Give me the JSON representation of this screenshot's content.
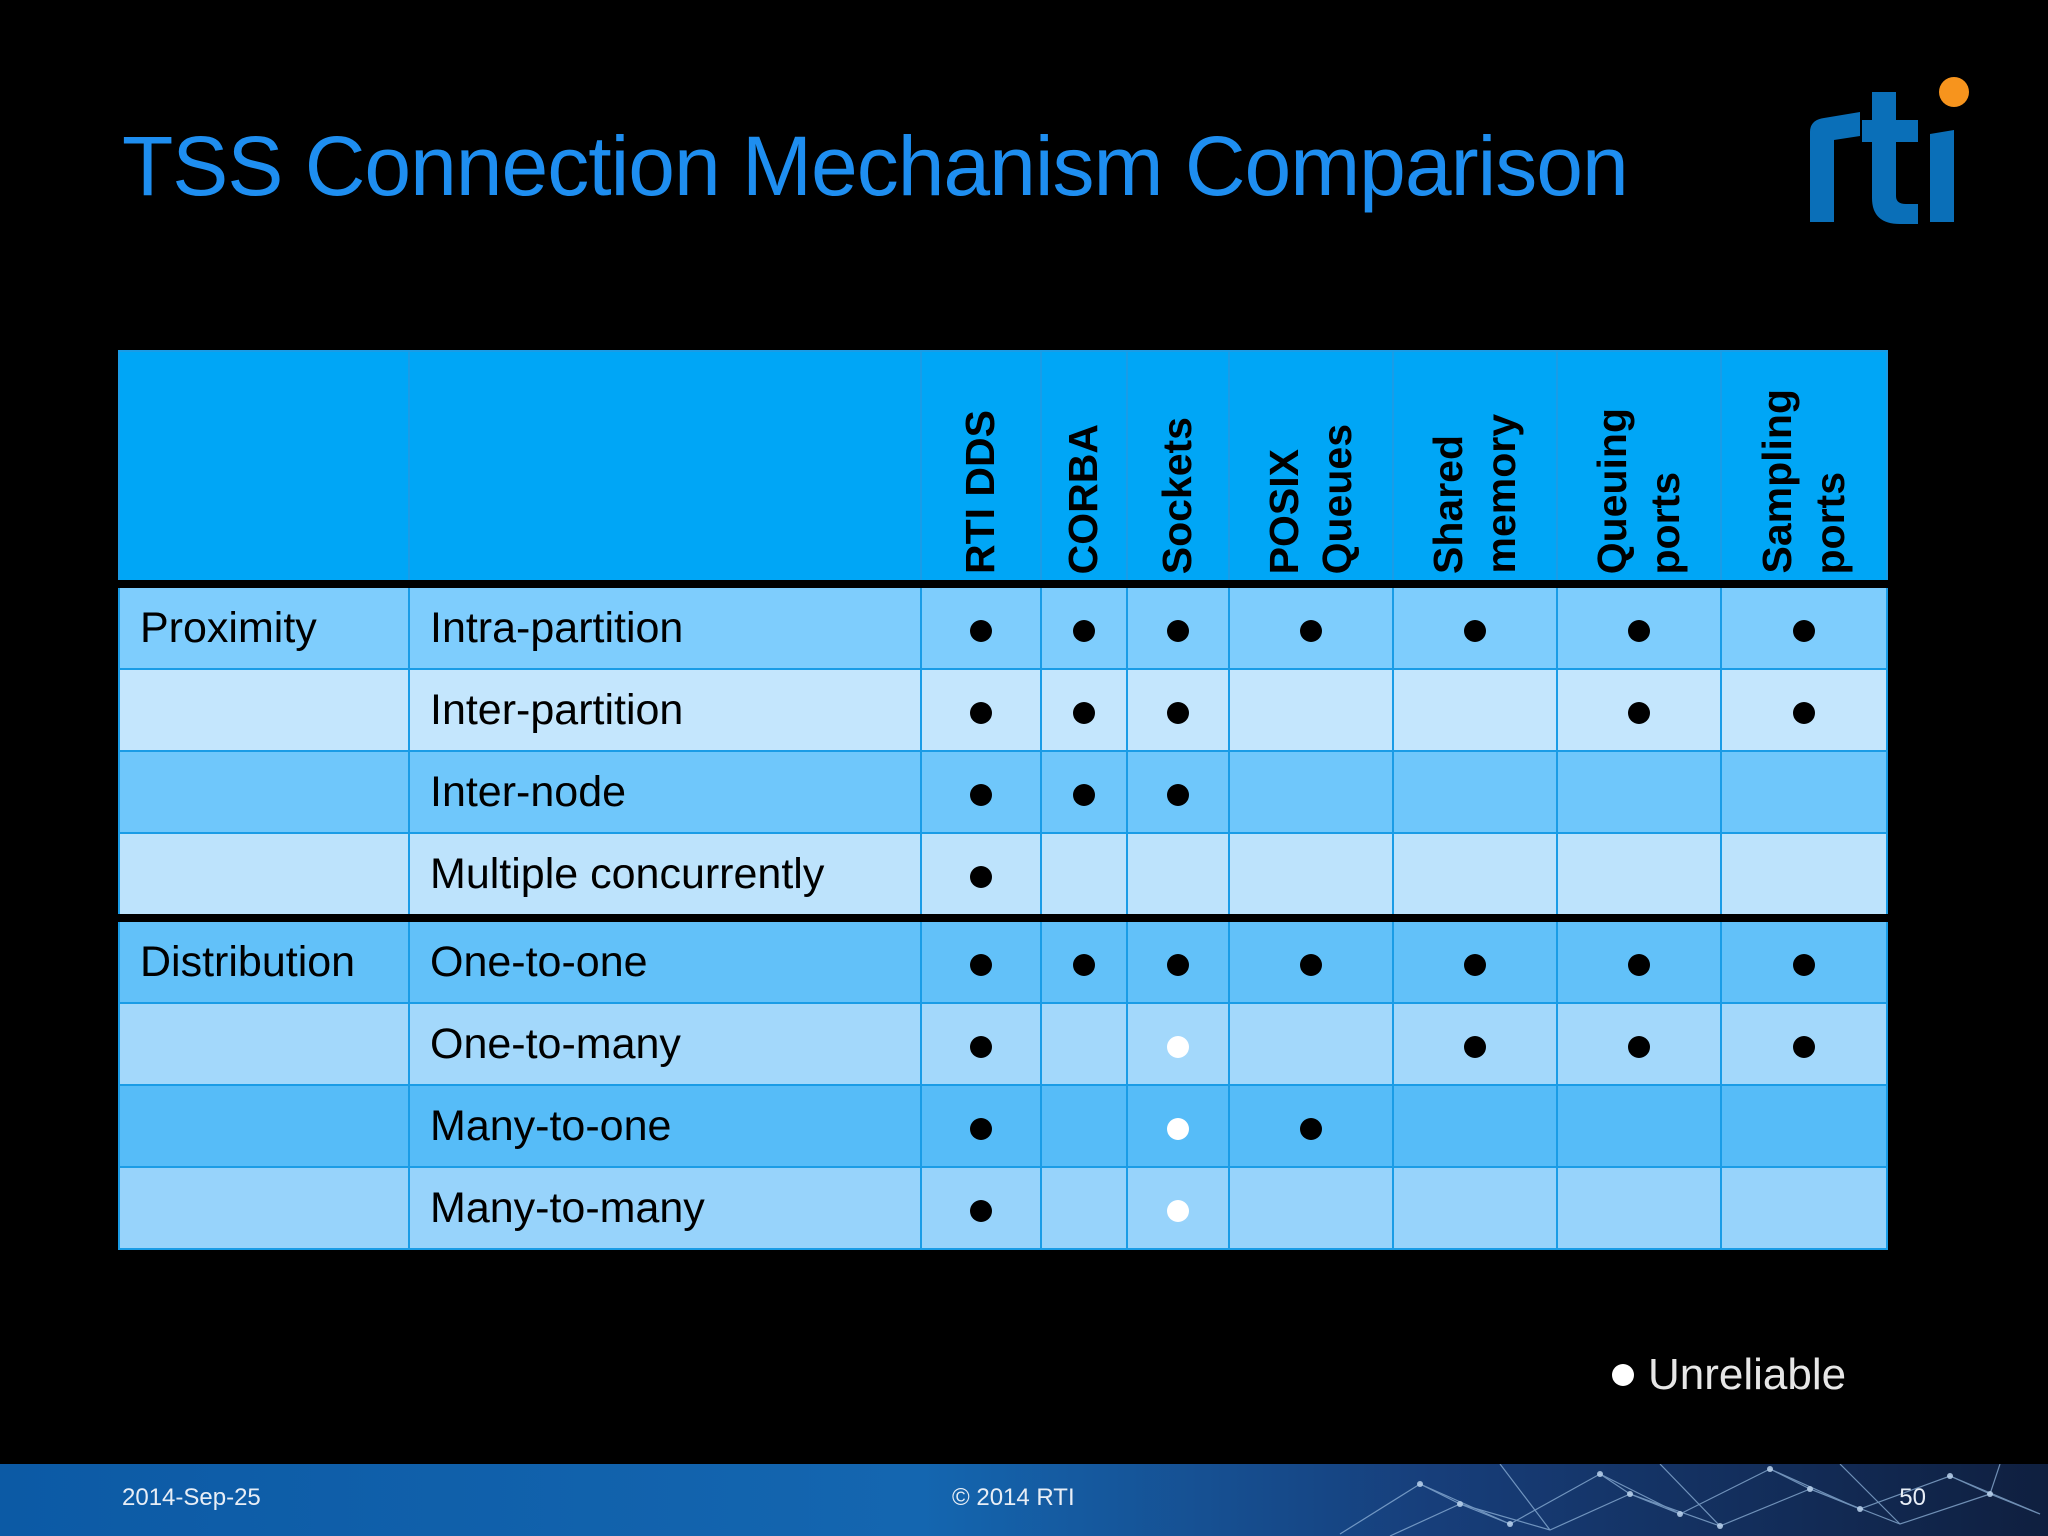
{
  "slide": {
    "title": "TSS Connection Mechanism Comparison",
    "logo_text": "rti"
  },
  "table": {
    "columns": [
      {
        "lines": [
          "RTI DDS"
        ]
      },
      {
        "lines": [
          "CORBA"
        ]
      },
      {
        "lines": [
          "Sockets"
        ]
      },
      {
        "lines": [
          "POSIX",
          "Queues"
        ]
      },
      {
        "lines": [
          "Shared",
          "memory"
        ]
      },
      {
        "lines": [
          "Queuing",
          "ports"
        ]
      },
      {
        "lines": [
          "Sampling",
          "ports"
        ]
      }
    ],
    "rows": [
      {
        "group": "Proximity",
        "label": "Intra-partition",
        "marks": [
          "black",
          "black",
          "black",
          "black",
          "black",
          "black",
          "black"
        ]
      },
      {
        "group": "",
        "label": "Inter-partition",
        "marks": [
          "black",
          "black",
          "black",
          "",
          "",
          "black",
          "black"
        ]
      },
      {
        "group": "",
        "label": "Inter-node",
        "marks": [
          "black",
          "black",
          "black",
          "",
          "",
          "",
          ""
        ]
      },
      {
        "group": "",
        "label": "Multiple concurrently",
        "marks": [
          "black",
          "",
          "",
          "",
          "",
          "",
          ""
        ]
      },
      {
        "group": "Distribution",
        "label": "One-to-one",
        "marks": [
          "black",
          "black",
          "black",
          "black",
          "black",
          "black",
          "black"
        ]
      },
      {
        "group": "",
        "label": "One-to-many",
        "marks": [
          "black",
          "",
          "white",
          "",
          "black",
          "black",
          "black"
        ]
      },
      {
        "group": "",
        "label": "Many-to-one",
        "marks": [
          "black",
          "",
          "white",
          "black",
          "",
          "",
          ""
        ]
      },
      {
        "group": "",
        "label": "Many-to-many",
        "marks": [
          "black",
          "",
          "white",
          "",
          "",
          "",
          ""
        ]
      }
    ]
  },
  "legend": {
    "label": "Unreliable",
    "dot_color": "#ffffff"
  },
  "footer": {
    "date": "2014-Sep-25",
    "copyright": "© 2014 RTI",
    "page": "50"
  },
  "colors": {
    "title": "#1e8ef0",
    "header_bg": "#00a6f6",
    "logo_blue": "#0a6fb8",
    "logo_orange": "#f7941d"
  }
}
